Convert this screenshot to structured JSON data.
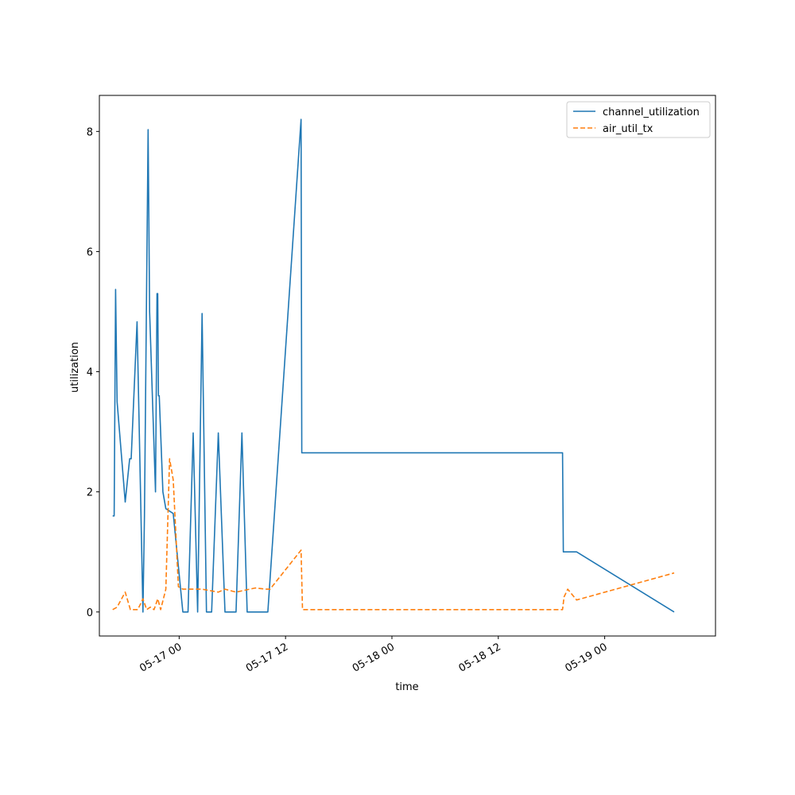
{
  "chart_data": {
    "type": "line",
    "title": "",
    "xlabel": "time",
    "ylabel": "utilization",
    "xlim": [
      "2024-05-16 15:00",
      "2024-05-19 12:30"
    ],
    "ylim": [
      -0.4,
      8.6
    ],
    "grid": false,
    "legend_position": "top-right",
    "x_ticks": [
      {
        "value": "2024-05-17 00:00",
        "label": "05-17 00"
      },
      {
        "value": "2024-05-17 12:00",
        "label": "05-17 12"
      },
      {
        "value": "2024-05-18 00:00",
        "label": "05-18 00"
      },
      {
        "value": "2024-05-18 12:00",
        "label": "05-18 12"
      },
      {
        "value": "2024-05-19 00:00",
        "label": "05-19 00"
      }
    ],
    "y_ticks": [
      {
        "value": 0,
        "label": "0"
      },
      {
        "value": 2,
        "label": "2"
      },
      {
        "value": 4,
        "label": "4"
      },
      {
        "value": 6,
        "label": "6"
      },
      {
        "value": 8,
        "label": "8"
      }
    ],
    "series": [
      {
        "name": "channel_utilization",
        "color": "#1f77b4",
        "dash": "solid",
        "x": [
          "2024-05-16 16:30",
          "2024-05-16 16:40",
          "2024-05-16 16:50",
          "2024-05-16 17:00",
          "2024-05-16 17:55",
          "2024-05-16 18:25",
          "2024-05-16 18:35",
          "2024-05-16 19:15",
          "2024-05-16 19:55",
          "2024-05-16 20:05",
          "2024-05-16 20:30",
          "2024-05-16 20:40",
          "2024-05-16 21:20",
          "2024-05-16 21:30",
          "2024-05-16 21:35",
          "2024-05-16 21:40",
          "2024-05-16 21:45",
          "2024-05-16 22:10",
          "2024-05-16 22:30",
          "2024-05-16 23:20",
          "2024-05-17 00:25",
          "2024-05-17 01:00",
          "2024-05-17 01:35",
          "2024-05-17 02:05",
          "2024-05-17 02:35",
          "2024-05-17 03:05",
          "2024-05-17 03:40",
          "2024-05-17 04:25",
          "2024-05-17 05:10",
          "2024-05-17 06:25",
          "2024-05-17 07:05",
          "2024-05-17 07:40",
          "2024-05-17 10:00",
          "2024-05-17 13:45",
          "2024-05-17 13:50",
          "2024-05-18 19:15",
          "2024-05-18 19:20",
          "2024-05-18 20:50",
          "2024-05-19 07:50"
        ],
        "y": [
          1.6,
          1.6,
          5.37,
          3.5,
          1.83,
          2.55,
          2.55,
          4.83,
          0.0,
          1.6,
          8.03,
          5.0,
          2.0,
          5.3,
          5.3,
          3.6,
          3.6,
          2.0,
          1.72,
          1.64,
          0.0,
          0.0,
          2.98,
          0.0,
          4.97,
          0.0,
          0.0,
          2.98,
          0.0,
          0.0,
          2.98,
          0.0,
          0.0,
          8.2,
          2.65,
          2.65,
          1.0,
          1.0,
          0.0
        ]
      },
      {
        "name": "air_util_tx",
        "color": "#ff7f0e",
        "dash": "dashed",
        "x": [
          "2024-05-16 16:30",
          "2024-05-16 17:00",
          "2024-05-16 17:55",
          "2024-05-16 18:30",
          "2024-05-16 19:20",
          "2024-05-16 19:55",
          "2024-05-16 20:20",
          "2024-05-16 20:45",
          "2024-05-16 21:10",
          "2024-05-16 21:35",
          "2024-05-16 21:55",
          "2024-05-16 22:30",
          "2024-05-16 22:55",
          "2024-05-16 23:20",
          "2024-05-16 23:55",
          "2024-05-17 00:25",
          "2024-05-17 01:35",
          "2024-05-17 02:35",
          "2024-05-17 04:25",
          "2024-05-17 05:10",
          "2024-05-17 06:25",
          "2024-05-17 08:35",
          "2024-05-17 09:50",
          "2024-05-17 10:15",
          "2024-05-17 13:45",
          "2024-05-17 13:55",
          "2024-05-18 19:15",
          "2024-05-18 19:25",
          "2024-05-18 19:50",
          "2024-05-18 20:50",
          "2024-05-19 07:50"
        ],
        "y": [
          0.04,
          0.08,
          0.33,
          0.04,
          0.04,
          0.22,
          0.04,
          0.08,
          0.04,
          0.22,
          0.04,
          0.38,
          2.55,
          2.2,
          0.42,
          0.38,
          0.38,
          0.38,
          0.33,
          0.38,
          0.33,
          0.4,
          0.38,
          0.38,
          1.03,
          0.04,
          0.04,
          0.25,
          0.38,
          0.2,
          0.65
        ]
      }
    ]
  }
}
